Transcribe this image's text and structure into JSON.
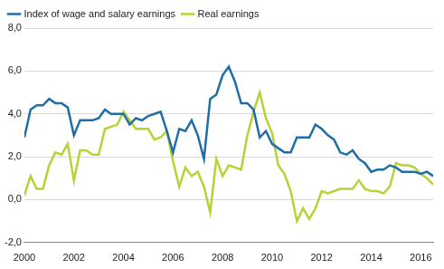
{
  "chart_data": {
    "type": "line",
    "x": [
      2000,
      2000.25,
      2000.5,
      2000.75,
      2001,
      2001.25,
      2001.5,
      2001.75,
      2002,
      2002.25,
      2002.5,
      2002.75,
      2003,
      2003.25,
      2003.5,
      2003.75,
      2004,
      2004.25,
      2004.5,
      2004.75,
      2005,
      2005.25,
      2005.5,
      2005.75,
      2006,
      2006.25,
      2006.5,
      2006.75,
      2007,
      2007.25,
      2007.5,
      2007.75,
      2008,
      2008.25,
      2008.5,
      2008.75,
      2009,
      2009.25,
      2009.5,
      2009.75,
      2010,
      2010.25,
      2010.5,
      2010.75,
      2011,
      2011.25,
      2011.5,
      2011.75,
      2012,
      2012.25,
      2012.5,
      2012.75,
      2013,
      2013.25,
      2013.5,
      2013.75,
      2014,
      2014.25,
      2014.5,
      2014.75,
      2015,
      2015.25,
      2015.5,
      2015.75,
      2016,
      2016.25,
      2016.5
    ],
    "series": [
      {
        "name": "Index of wage and salary earnings",
        "color": "#1f6ea6",
        "values": [
          2.9,
          4.2,
          4.4,
          4.4,
          4.7,
          4.5,
          4.5,
          4.3,
          3.0,
          3.7,
          3.7,
          3.7,
          3.8,
          4.2,
          4.0,
          4.0,
          4.0,
          3.5,
          3.8,
          3.7,
          3.9,
          4.0,
          4.1,
          3.2,
          2.2,
          3.3,
          3.2,
          3.7,
          3.0,
          1.9,
          4.7,
          4.9,
          5.8,
          6.2,
          5.5,
          4.5,
          4.5,
          4.2,
          2.9,
          3.2,
          2.6,
          2.4,
          2.2,
          2.2,
          2.9,
          2.9,
          2.9,
          3.5,
          3.3,
          3.0,
          2.8,
          2.2,
          2.1,
          2.3,
          1.9,
          1.7,
          1.3,
          1.4,
          1.4,
          1.6,
          1.5,
          1.3,
          1.3,
          1.3,
          1.2,
          1.3,
          1.1
        ]
      },
      {
        "name": "Real earnings",
        "color": "#b5d334",
        "values": [
          0.2,
          1.1,
          0.5,
          0.5,
          1.6,
          2.2,
          2.1,
          2.6,
          0.9,
          2.3,
          2.3,
          2.1,
          2.1,
          3.3,
          3.4,
          3.5,
          4.1,
          3.7,
          3.3,
          3.3,
          3.3,
          2.8,
          2.9,
          3.2,
          1.8,
          0.6,
          1.5,
          1.1,
          1.3,
          0.6,
          -0.6,
          1.9,
          1.1,
          1.6,
          1.5,
          1.4,
          3.0,
          4.1,
          5.0,
          3.8,
          3.1,
          1.6,
          1.2,
          0.4,
          -1.0,
          -0.4,
          -0.9,
          -0.4,
          0.4,
          0.3,
          0.4,
          0.5,
          0.5,
          0.5,
          0.9,
          0.5,
          0.4,
          0.4,
          0.3,
          0.6,
          1.7,
          1.6,
          1.6,
          1.5,
          1.2,
          1.0,
          0.7
        ]
      }
    ],
    "xlim": [
      2000,
      2016.5
    ],
    "xticks": [
      2000,
      2002,
      2004,
      2006,
      2008,
      2010,
      2012,
      2014,
      2016
    ],
    "ylim": [
      -2,
      8
    ],
    "yticks": [
      {
        "value": -2,
        "label": "-2,0"
      },
      {
        "value": 0,
        "label": "0,0"
      },
      {
        "value": 2,
        "label": "2,0"
      },
      {
        "value": 4,
        "label": "4,0"
      },
      {
        "value": 6,
        "label": "6,0"
      },
      {
        "value": 8,
        "label": "8,0"
      }
    ],
    "grid": true,
    "legend": "upper left"
  }
}
